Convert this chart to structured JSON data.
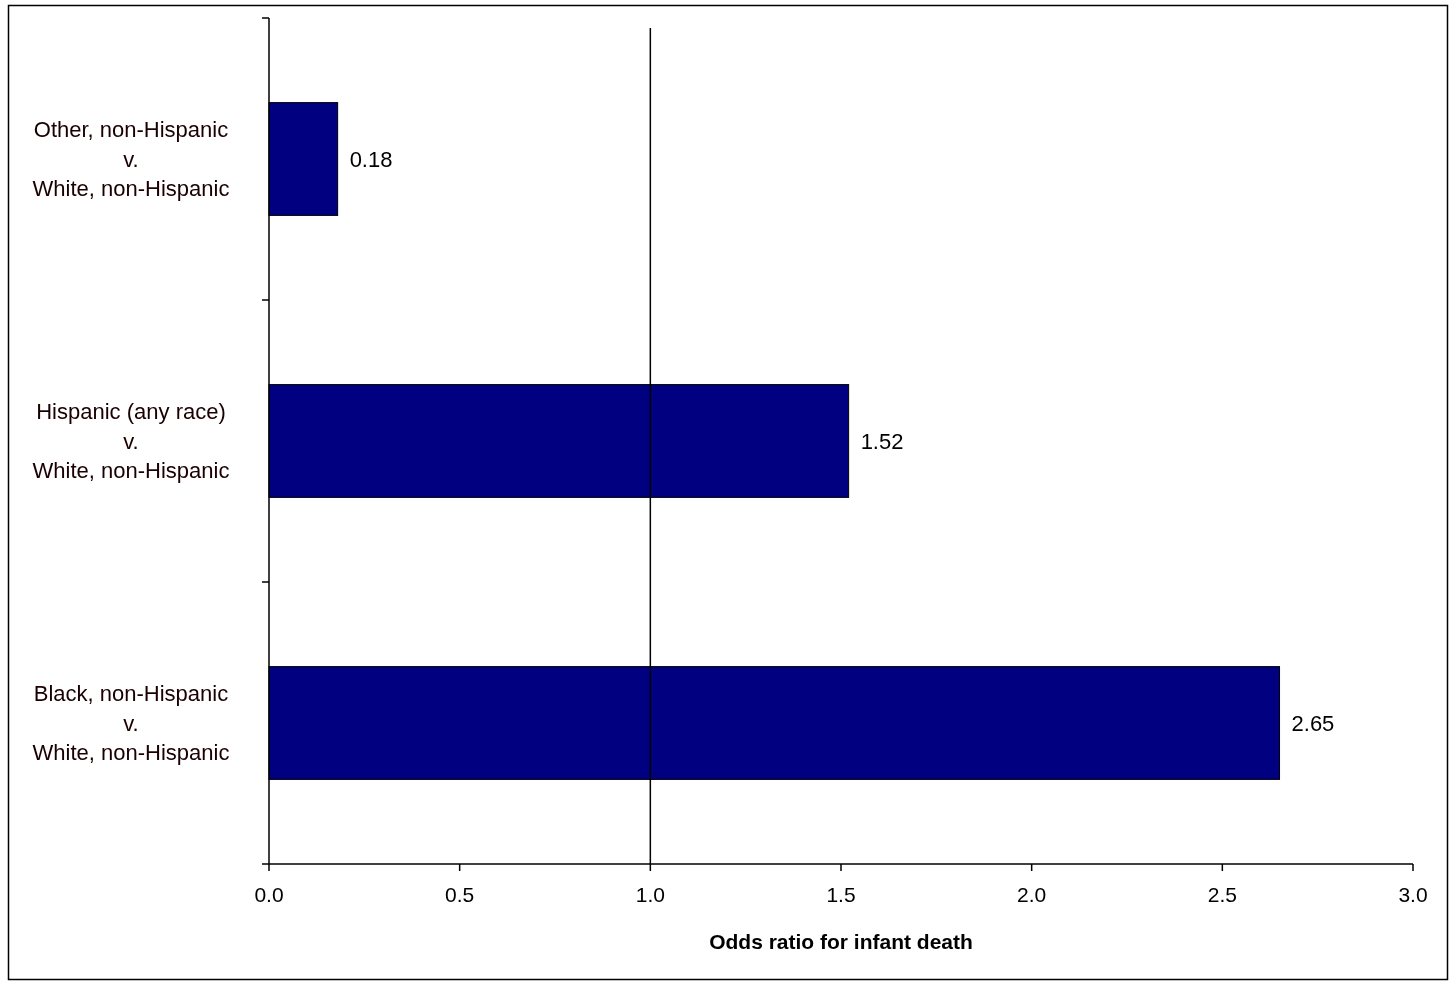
{
  "chart_data": {
    "type": "bar",
    "orientation": "horizontal",
    "categories": [
      "Other, non-Hispanic\nv.\nWhite, non-Hispanic",
      "Hispanic (any race)\nv.\nWhite, non-Hispanic",
      "Black, non-Hispanic\nv.\nWhite, non-Hispanic"
    ],
    "values": [
      0.18,
      1.52,
      2.65
    ],
    "color": "#000080",
    "data_labels": true,
    "xlim": [
      0,
      3
    ],
    "xticks": [
      {
        "value": 0,
        "label": "0.0"
      },
      0.5,
      {
        "value": 1,
        "label": "1.0"
      },
      1.5,
      {
        "value": 2,
        "label": "2.0"
      },
      2.5,
      {
        "value": 3,
        "label": "3.0"
      }
    ],
    "xlabel": "Odds ratio for infant death",
    "ref_lines": [
      {
        "axis": "x",
        "value": 1,
        "color": "#000000"
      }
    ]
  }
}
